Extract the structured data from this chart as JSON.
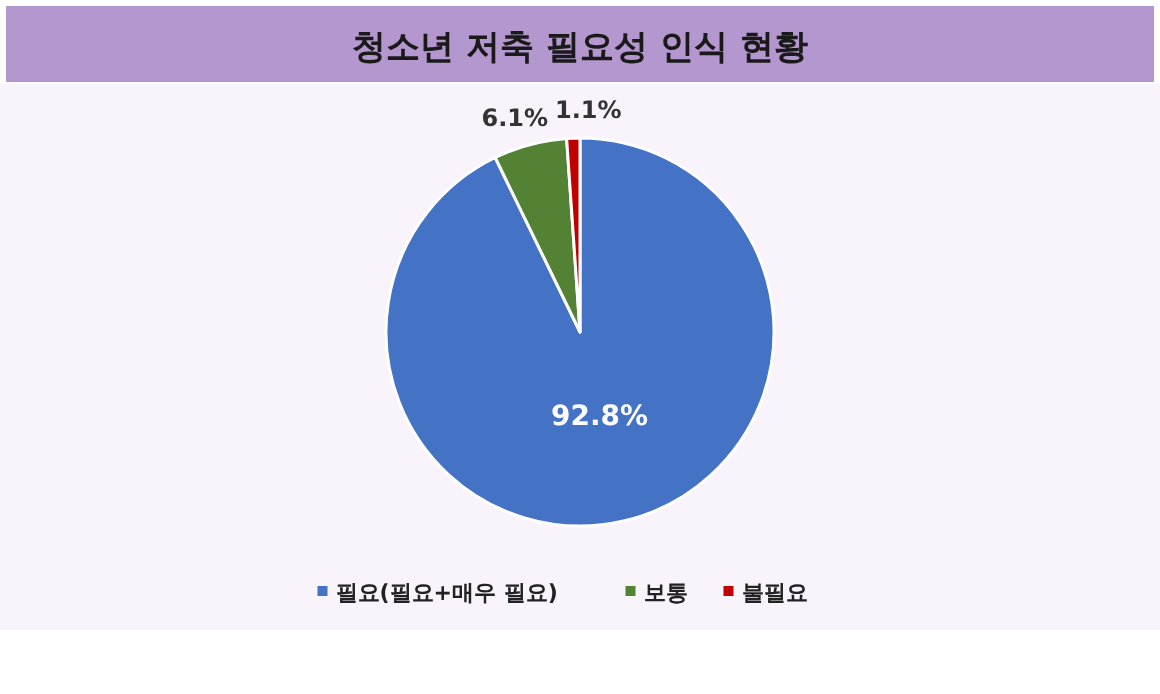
{
  "chart_data": {
    "type": "pie",
    "title": "청소년 저축 필요성 인식 현황",
    "categories": [
      "필요(필요+매우 필요)",
      "보통",
      "불필요"
    ],
    "values": [
      92.8,
      6.1,
      1.1
    ],
    "colors": [
      "#4472c4",
      "#548235",
      "#c00000"
    ],
    "value_labels": [
      "92.8%",
      "6.1%",
      "1.1%"
    ],
    "legend": "bottom"
  }
}
